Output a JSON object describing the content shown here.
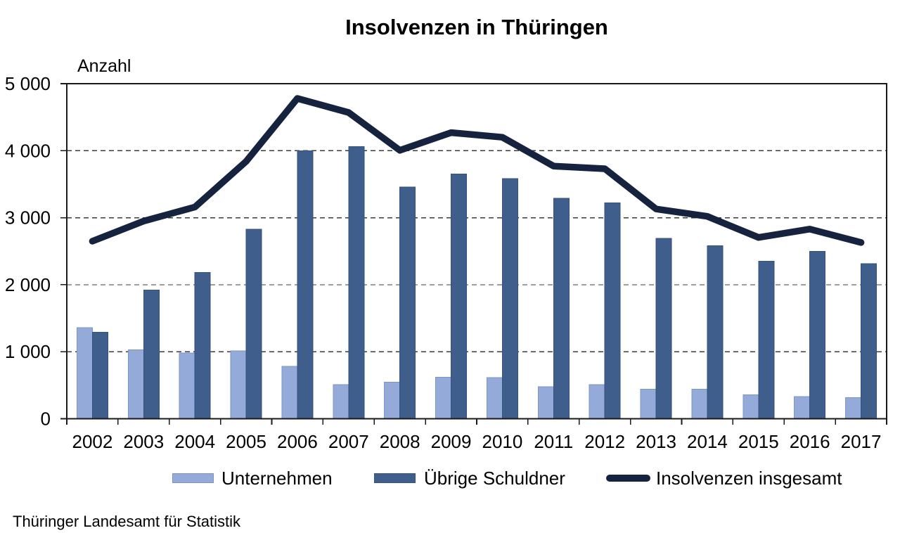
{
  "title": "Insolvenzen in Thüringen",
  "y_axis_label": "Anzahl",
  "source_note": "Thüringer Landesamt für Statistik",
  "legend": [
    {
      "label": "Unternehmen",
      "type": "bar"
    },
    {
      "label": "Übrige Schuldner",
      "type": "bar"
    },
    {
      "label": "Insolvenzen insgesamt",
      "type": "line"
    }
  ],
  "colors": {
    "unternehmen_fill": "#94AAD9",
    "unternehmen_border": "#7C95C8",
    "uebrige_fill": "#405E8C",
    "uebrige_border": "#355380",
    "total_line": "#16233F",
    "grid": "#3C3C3C",
    "axis": "#1A1A1A",
    "text": "#000000",
    "background": "#FFFFFF"
  },
  "chart_data": {
    "type": "bar+line",
    "title": "Insolvenzen in Thüringen",
    "ylabel": "Anzahl",
    "xlabel": "",
    "categories": [
      "2002",
      "2003",
      "2004",
      "2005",
      "2006",
      "2007",
      "2008",
      "2009",
      "2010",
      "2011",
      "2012",
      "2013",
      "2014",
      "2015",
      "2016",
      "2017"
    ],
    "series": [
      {
        "name": "Unternehmen",
        "type": "bar",
        "values": [
          1360,
          1030,
          980,
          1010,
          780,
          510,
          545,
          620,
          615,
          480,
          510,
          440,
          440,
          355,
          330,
          315
        ]
      },
      {
        "name": "Übrige Schuldner",
        "type": "bar",
        "values": [
          1290,
          1920,
          2180,
          2830,
          4000,
          4060,
          3460,
          3650,
          3585,
          3290,
          3220,
          2690,
          2580,
          2350,
          2500,
          2315
        ]
      },
      {
        "name": "Insolvenzen insgesamt",
        "type": "line",
        "values": [
          2650,
          2950,
          3160,
          3840,
          4780,
          4570,
          4005,
          4270,
          4200,
          3770,
          3730,
          3130,
          3020,
          2705,
          2830,
          2630
        ]
      }
    ],
    "ylim": [
      0,
      5000
    ],
    "ytick_step": 1000,
    "ytick_labels": [
      "0",
      "1 000",
      "2 000",
      "3 000",
      "4 000",
      "5 000"
    ],
    "grid": "horizontal-dashed",
    "legend_position": "bottom",
    "source": "Thüringer Landesamt für Statistik",
    "values_are_estimated_from_pixels": true
  }
}
